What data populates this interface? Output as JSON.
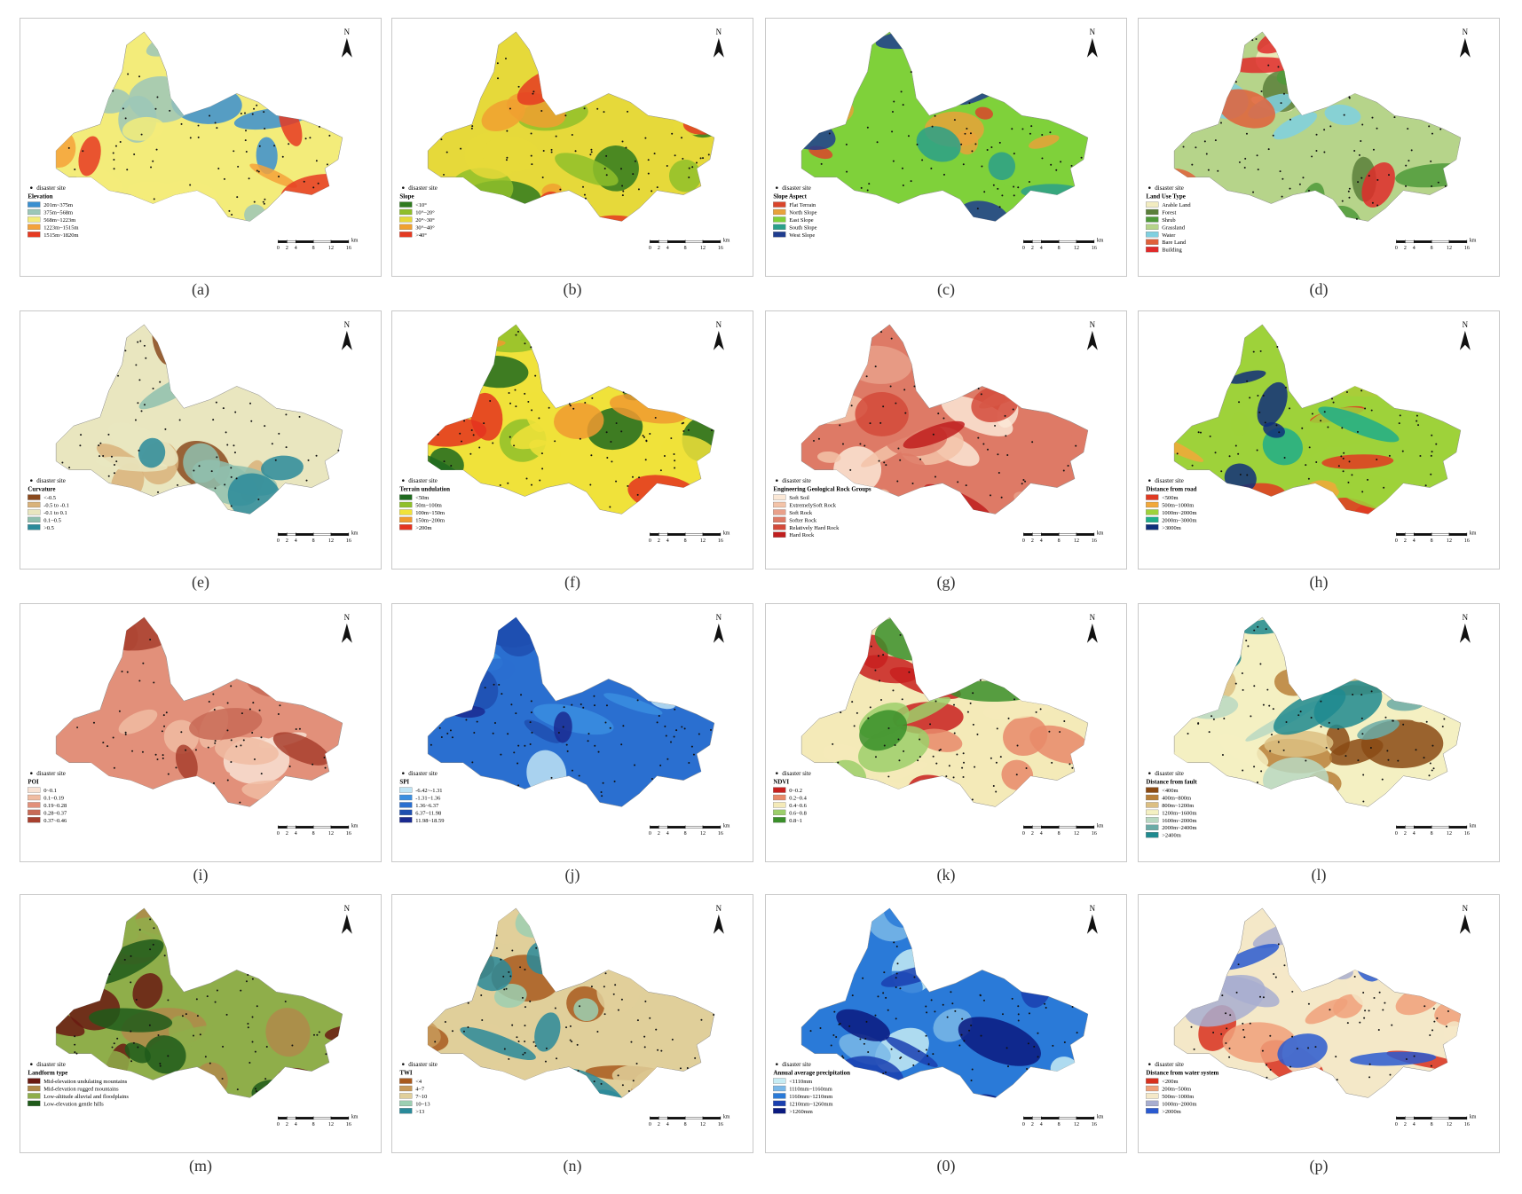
{
  "point_label": "disaster site",
  "north": "N",
  "scale": {
    "ticks": [
      0,
      2,
      4,
      8,
      12,
      16
    ],
    "unit": "km"
  },
  "panels": [
    {
      "label": "(a)",
      "legend_title": "Elevation",
      "legend": [
        {
          "label": "201m~375m",
          "color": "#3a8fd0"
        },
        {
          "label": "375m~568m",
          "color": "#9cc7b8"
        },
        {
          "label": "568m~1223m",
          "color": "#f3ec7a"
        },
        {
          "label": "1223m~1515m",
          "color": "#f4a23a"
        },
        {
          "label": "1515m~1820m",
          "color": "#e63a22"
        }
      ]
    },
    {
      "label": "(b)",
      "legend_title": "Slope",
      "legend": [
        {
          "label": "<10°",
          "color": "#2f7a1f"
        },
        {
          "label": "10°~20°",
          "color": "#8fbf2a"
        },
        {
          "label": "20°~30°",
          "color": "#e6d93a"
        },
        {
          "label": "30°~40°",
          "color": "#f0a030"
        },
        {
          "label": ">40°",
          "color": "#e43a22"
        }
      ]
    },
    {
      "label": "(c)",
      "legend_title": "Slope Aspect",
      "legend": [
        {
          "label": "Flat Terrain",
          "color": "#d9452b"
        },
        {
          "label": "North Slope",
          "color": "#e8a23a"
        },
        {
          "label": "East Slope",
          "color": "#7fd13a"
        },
        {
          "label": "South Slope",
          "color": "#2aa08a"
        },
        {
          "label": "West Slope",
          "color": "#1f3d8f"
        }
      ]
    },
    {
      "label": "(d)",
      "legend_title": "Land Use Type",
      "legend": [
        {
          "label": "Arable Land",
          "color": "#f2ecc0"
        },
        {
          "label": "Forest",
          "color": "#5a7f3a"
        },
        {
          "label": "Shrub",
          "color": "#4f9a3a"
        },
        {
          "label": "Grassland",
          "color": "#b6d48a"
        },
        {
          "label": "Water",
          "color": "#7fd0e0"
        },
        {
          "label": "Bare Land",
          "color": "#e0603a"
        },
        {
          "label": "Building",
          "color": "#e02a2a"
        }
      ]
    },
    {
      "label": "(e)",
      "legend_title": "Curvature",
      "legend": [
        {
          "label": "<-0.5",
          "color": "#8a4a1e"
        },
        {
          "label": "-0.5 to -0.1",
          "color": "#d9b27a"
        },
        {
          "label": "-0.1 to 0.1",
          "color": "#e9e6bf"
        },
        {
          "label": "0.1~0.5",
          "color": "#8fbfae"
        },
        {
          "label": ">0.5",
          "color": "#2a8a9a"
        }
      ]
    },
    {
      "label": "(f)",
      "legend_title": "Terrain undulation",
      "legend": [
        {
          "label": "<50m",
          "color": "#1f6a1f"
        },
        {
          "label": "50m~100m",
          "color": "#8fc02a"
        },
        {
          "label": "100m~150m",
          "color": "#f0e23a"
        },
        {
          "label": "150m~200m",
          "color": "#f09a30"
        },
        {
          "label": ">200m",
          "color": "#e4321f"
        }
      ]
    },
    {
      "label": "(g)",
      "legend_title": "Engineering Geological Rock Groups",
      "legend": [
        {
          "label": "Soft Soil",
          "color": "#fbe8d6"
        },
        {
          "label": "ExtremelySoft Rock",
          "color": "#f3c3a8"
        },
        {
          "label": "Soft Rock",
          "color": "#e9a08a"
        },
        {
          "label": "Softer Rock",
          "color": "#de7a66"
        },
        {
          "label": "Relatively Hard Rock",
          "color": "#d44a3a"
        },
        {
          "label": "Hard Rock",
          "color": "#c01e1e"
        }
      ]
    },
    {
      "label": "(h)",
      "legend_title": "Distance from road",
      "legend": [
        {
          "label": "<500m",
          "color": "#e03a22"
        },
        {
          "label": "500m~1000m",
          "color": "#f2a83a"
        },
        {
          "label": "1000m~2000m",
          "color": "#9ed23a"
        },
        {
          "label": "2000m~3000m",
          "color": "#1fae8a"
        },
        {
          "label": ">3000m",
          "color": "#0f2f7a"
        }
      ]
    },
    {
      "label": "(i)",
      "legend_title": "POI",
      "legend": [
        {
          "label": "0~0.1",
          "color": "#f8e2d4"
        },
        {
          "label": "0.1~0.19",
          "color": "#f0bca2"
        },
        {
          "label": "0.19~0.28",
          "color": "#e2907a"
        },
        {
          "label": "0.28~0.37",
          "color": "#c86a56"
        },
        {
          "label": "0.37~0.46",
          "color": "#a8402e"
        }
      ]
    },
    {
      "label": "(j)",
      "legend_title": "SPI",
      "legend": [
        {
          "label": "-6.42~-1.31",
          "color": "#bfe4f4"
        },
        {
          "label": "-1.31~1.36",
          "color": "#3a8ee0"
        },
        {
          "label": "1.36~6.37",
          "color": "#2a6fd0"
        },
        {
          "label": "6.37~11.98",
          "color": "#1f4fb0"
        },
        {
          "label": "11.98~18.59",
          "color": "#1a2a90"
        }
      ]
    },
    {
      "label": "(k)",
      "legend_title": "NDVI",
      "legend": [
        {
          "label": "0~0.2",
          "color": "#c8201e"
        },
        {
          "label": "0.2~0.4",
          "color": "#e88a6a"
        },
        {
          "label": "0.4~0.6",
          "color": "#f4eab8"
        },
        {
          "label": "0.6~0.8",
          "color": "#9ccf6a"
        },
        {
          "label": "0.8~1",
          "color": "#3a8f2a"
        }
      ]
    },
    {
      "label": "(l)",
      "legend_title": "Distance from fault",
      "legend": [
        {
          "label": "<400m",
          "color": "#8a4a14"
        },
        {
          "label": "400m~800m",
          "color": "#b8803a"
        },
        {
          "label": "800m~1200m",
          "color": "#dcbf82"
        },
        {
          "label": "1200m~1600m",
          "color": "#f4f0c2"
        },
        {
          "label": "1600m~2000m",
          "color": "#b8d8c2"
        },
        {
          "label": "2000m~2400m",
          "color": "#6aaaa6"
        },
        {
          "label": ">2400m",
          "color": "#1f8a8f"
        }
      ]
    },
    {
      "label": "(m)",
      "legend_title": "Landform type",
      "legend": [
        {
          "label": "Mid-elevation undulating mountains",
          "color": "#6a1a12"
        },
        {
          "label": "Mid-elevation rugged mountains",
          "color": "#b08a4a"
        },
        {
          "label": "Low-altitude alluvial and floodplains",
          "color": "#8fae4a"
        },
        {
          "label": "Low-elevation gentle hills",
          "color": "#1f5a1a"
        }
      ]
    },
    {
      "label": "(n)",
      "legend_title": "TWI",
      "legend": [
        {
          "label": "<4",
          "color": "#a85a1e"
        },
        {
          "label": "4~7",
          "color": "#c89a5a"
        },
        {
          "label": "7~10",
          "color": "#e0cf9a"
        },
        {
          "label": "10~13",
          "color": "#9ccfb2"
        },
        {
          "label": ">13",
          "color": "#2a8a9a"
        }
      ]
    },
    {
      "label": "(0)",
      "legend_title": "Annual average precipitation",
      "legend": [
        {
          "label": "<1110mm",
          "color": "#c6ecf4"
        },
        {
          "label": "1110mm~1160mm",
          "color": "#7ab8e8"
        },
        {
          "label": "1160mm~1210mm",
          "color": "#2a7ad8"
        },
        {
          "label": "1210mm~1260mm",
          "color": "#1a40b0"
        },
        {
          "label": ">1260mm",
          "color": "#0a1a80"
        }
      ]
    },
    {
      "label": "(p)",
      "legend_title": "Distance from water system",
      "legend": [
        {
          "label": "<200m",
          "color": "#d8301e"
        },
        {
          "label": "200m~500m",
          "color": "#f0a07a"
        },
        {
          "label": "500m~1000m",
          "color": "#f4e8c8"
        },
        {
          "label": "1000m~2000m",
          "color": "#a8aed0"
        },
        {
          "label": ">2000m",
          "color": "#2a5ad0"
        }
      ]
    }
  ]
}
